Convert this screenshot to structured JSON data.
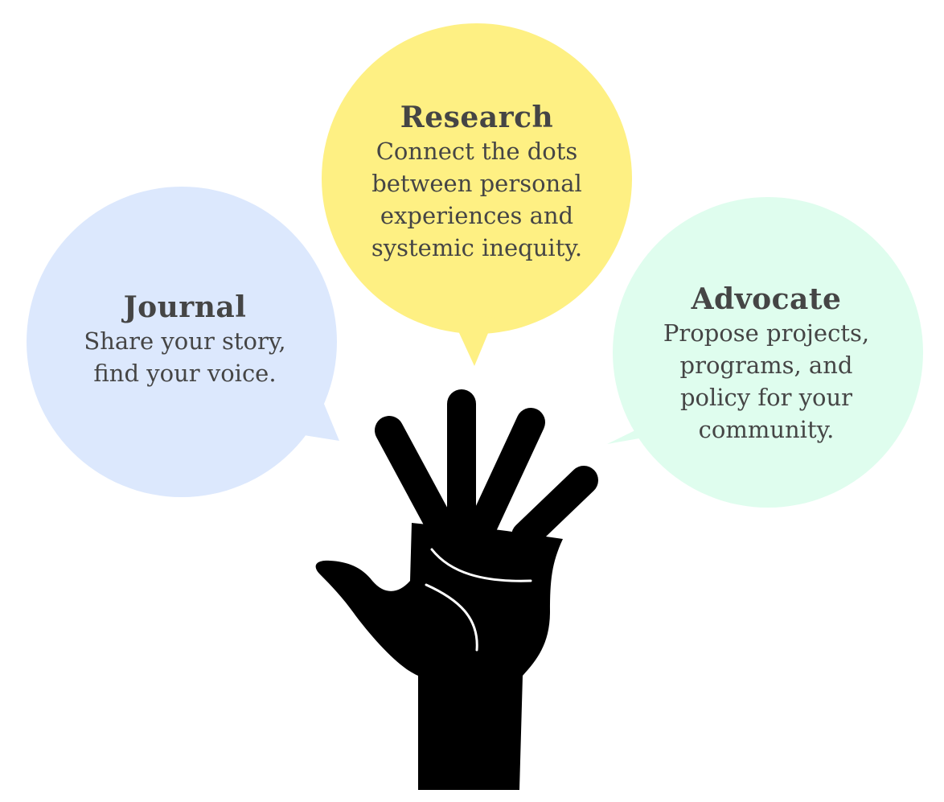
{
  "bubbles": {
    "journal": {
      "title": "Journal",
      "lines": [
        "Share your story,",
        "find your voice."
      ],
      "color": "#dce8fd"
    },
    "research": {
      "title": "Research",
      "lines": [
        "Connect the dots",
        "between personal",
        "experiences and",
        "systemic inequity."
      ],
      "color": "#fef083"
    },
    "advocate": {
      "title": "Advocate",
      "lines": [
        "Propose projects,",
        "programs, and",
        "policy for your",
        "community."
      ],
      "color": "#dffdee"
    }
  },
  "colors": {
    "text": "#454545",
    "hand": "#000000",
    "palm_lines": "#ffffff"
  },
  "icons": {
    "hand": "raised-hand-icon"
  }
}
